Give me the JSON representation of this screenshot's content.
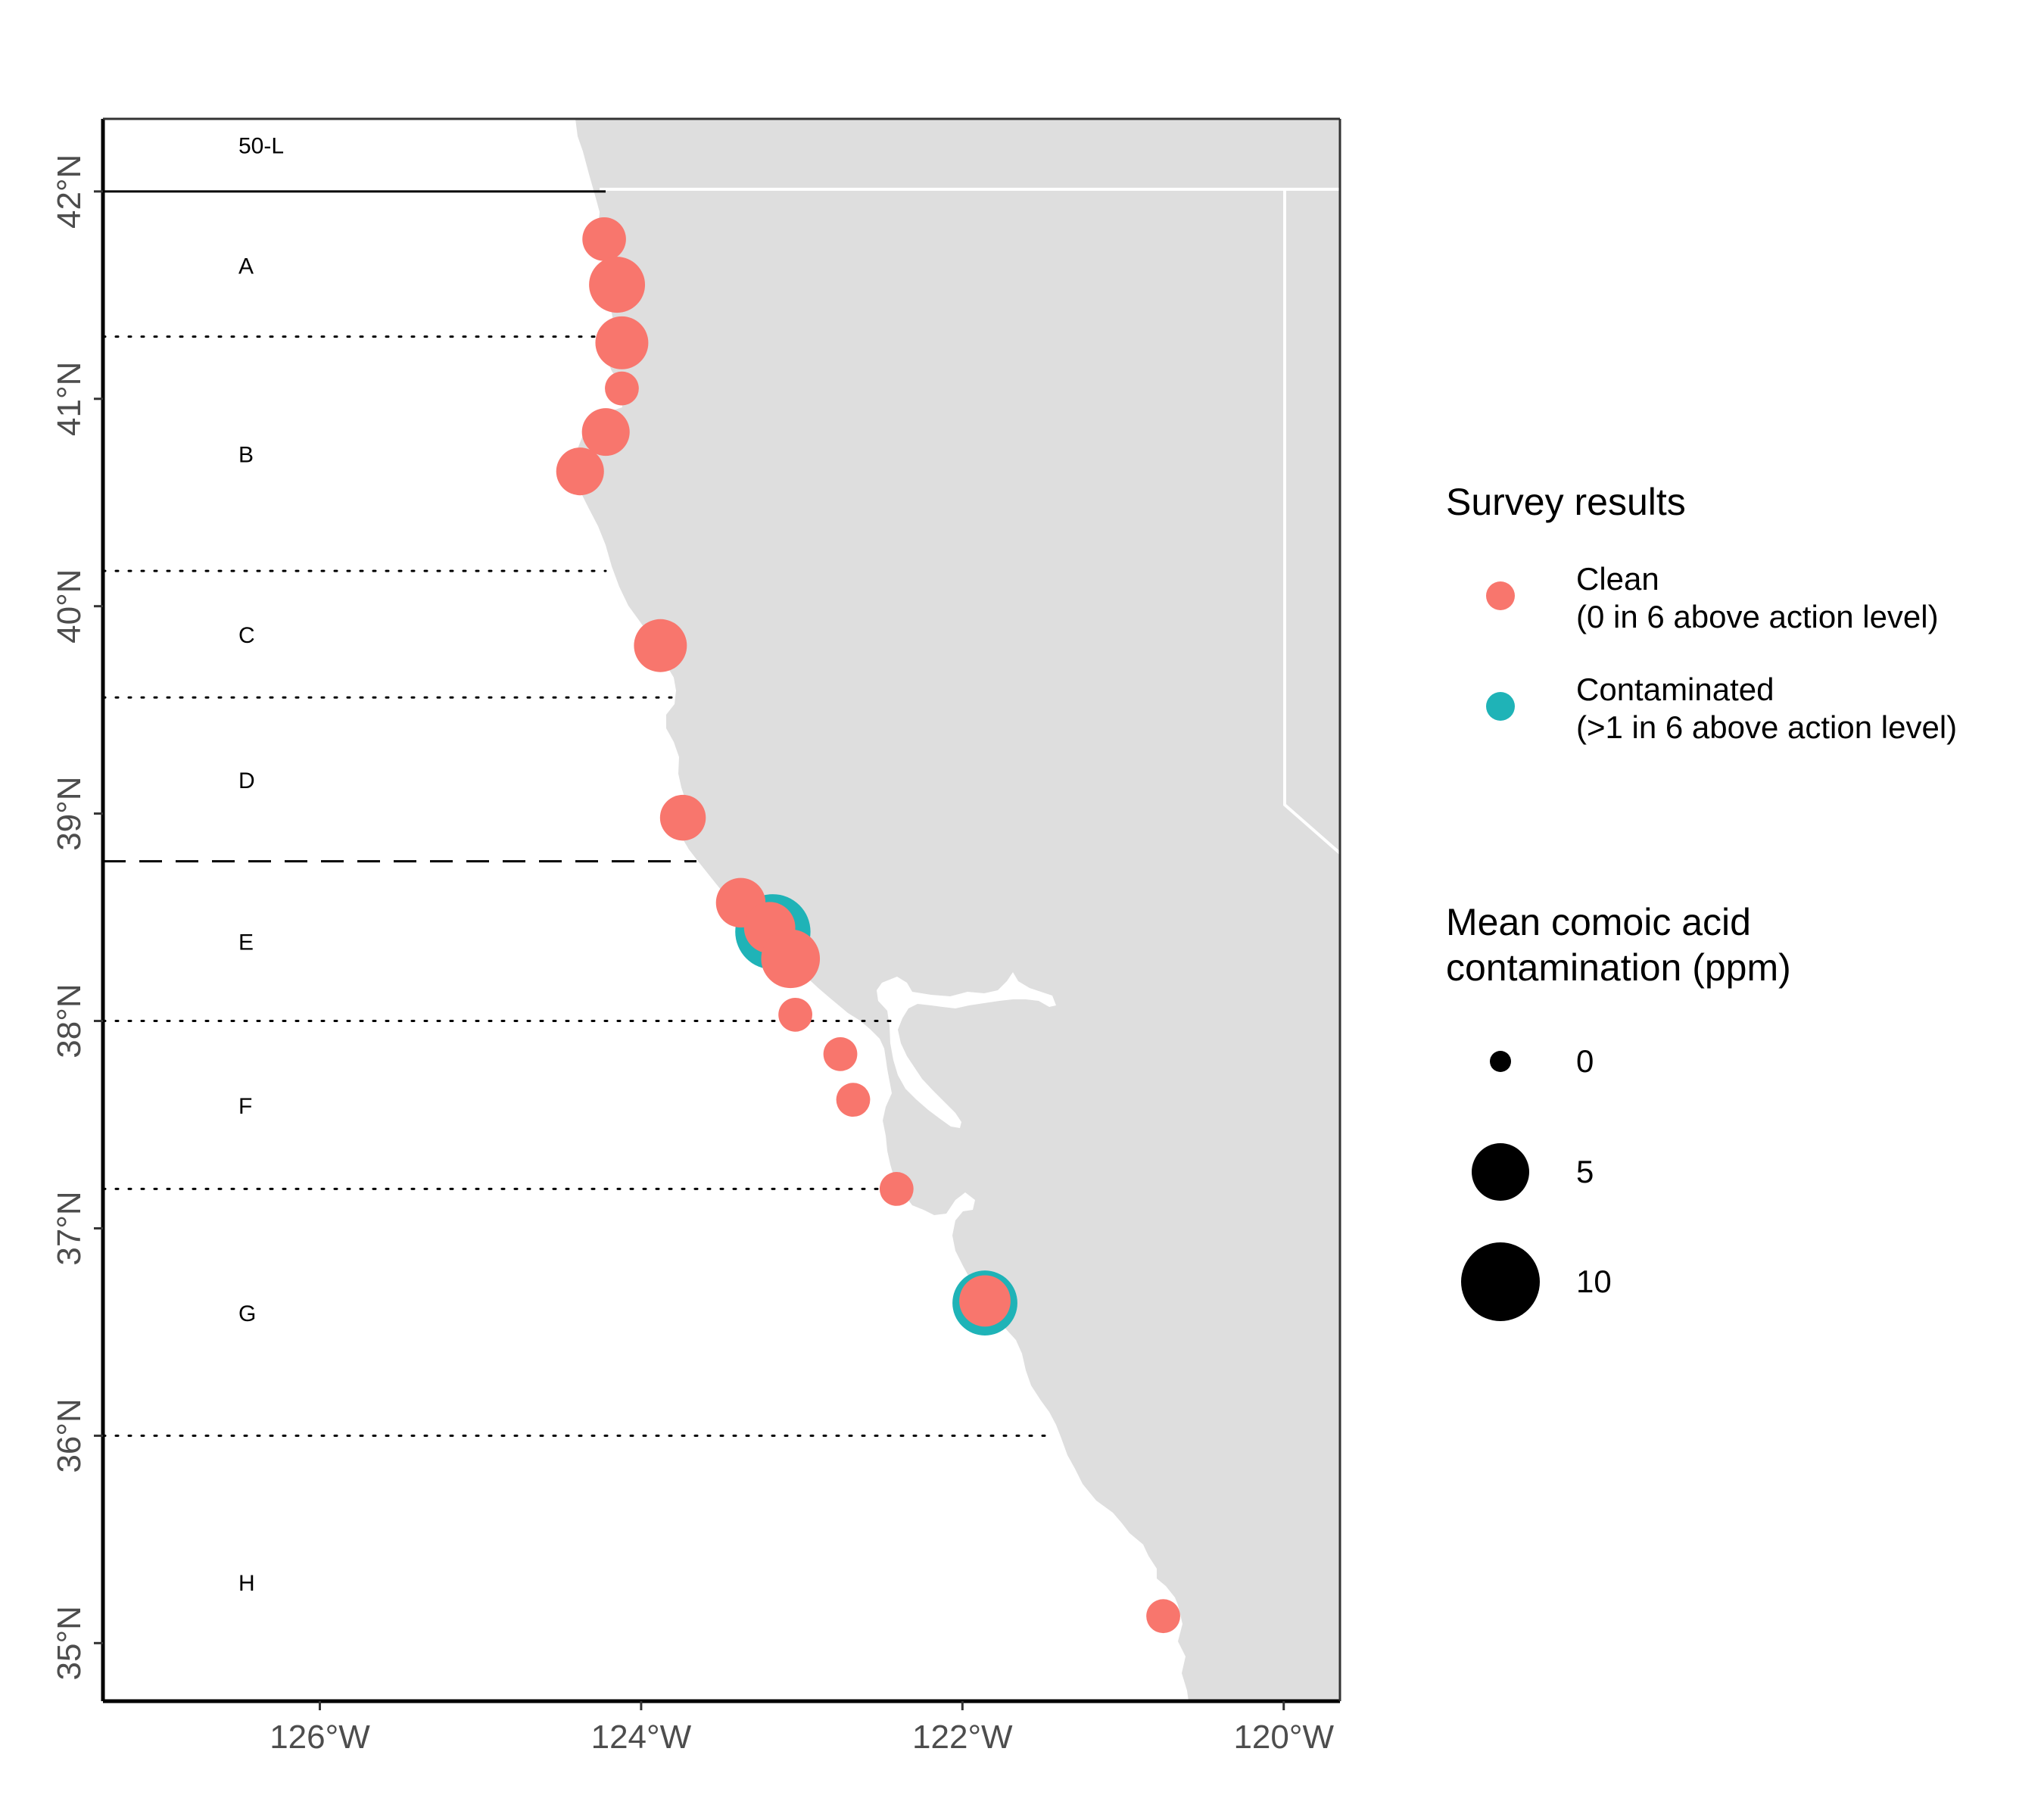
{
  "map": {
    "lon_range": [
      -127.35,
      -119.65
    ],
    "lat_range": [
      34.72,
      42.35
    ],
    "x_ticks": [
      {
        "value": -126,
        "label": "126°W"
      },
      {
        "value": -124,
        "label": "124°W"
      },
      {
        "value": -122,
        "label": "122°W"
      },
      {
        "value": -120,
        "label": "120°W"
      }
    ],
    "y_ticks": [
      {
        "value": 35,
        "label": "35°N"
      },
      {
        "value": 36,
        "label": "36°N"
      },
      {
        "value": 37,
        "label": "37°N"
      },
      {
        "value": 38,
        "label": "38°N"
      },
      {
        "value": 39,
        "label": "39°N"
      },
      {
        "value": 40,
        "label": "40°N"
      },
      {
        "value": 41,
        "label": "41°N"
      },
      {
        "value": 42,
        "label": "42°N"
      }
    ],
    "land_color": "#dedede",
    "zone_boundaries": [
      {
        "lat": 42.0,
        "style": "solid"
      },
      {
        "lat": 41.3,
        "style": "dotted"
      },
      {
        "lat": 40.17,
        "style": "dotted"
      },
      {
        "lat": 39.56,
        "style": "dotted"
      },
      {
        "lat": 38.77,
        "style": "dashed"
      },
      {
        "lat": 38.0,
        "style": "dotted"
      },
      {
        "lat": 37.19,
        "style": "dotted"
      },
      {
        "lat": 36.0,
        "style": "dotted"
      }
    ],
    "zones": [
      {
        "label": "50-L",
        "lat": 42.22
      },
      {
        "label": "A",
        "lat": 41.64
      },
      {
        "label": "B",
        "lat": 40.73
      },
      {
        "label": "C",
        "lat": 39.86
      },
      {
        "label": "D",
        "lat": 39.16
      },
      {
        "label": "E",
        "lat": 38.38
      },
      {
        "label": "F",
        "lat": 37.59
      },
      {
        "label": "G",
        "lat": 36.59
      },
      {
        "label": "H",
        "lat": 35.29
      }
    ]
  },
  "colors": {
    "clean": "#f8766d",
    "contaminated": "#1fb3b7"
  },
  "chart_data": {
    "type": "scatter",
    "x_axis": "longitude",
    "y_axis": "latitude",
    "size_variable": "Mean comoic acid contamination (ppm)",
    "points": [
      {
        "lon": -124.23,
        "lat": 41.77,
        "ppm": 2.5,
        "result": "clean"
      },
      {
        "lon": -124.15,
        "lat": 41.55,
        "ppm": 6.0,
        "result": "clean"
      },
      {
        "lon": -124.12,
        "lat": 41.27,
        "ppm": 5.0,
        "result": "clean"
      },
      {
        "lon": -124.12,
        "lat": 41.05,
        "ppm": 0.8,
        "result": "clean"
      },
      {
        "lon": -124.22,
        "lat": 40.84,
        "ppm": 3.5,
        "result": "clean"
      },
      {
        "lon": -124.38,
        "lat": 40.65,
        "ppm": 3.5,
        "result": "clean"
      },
      {
        "lon": -123.88,
        "lat": 39.81,
        "ppm": 5.0,
        "result": "clean"
      },
      {
        "lon": -123.74,
        "lat": 38.98,
        "ppm": 3.0,
        "result": "clean"
      },
      {
        "lon": -123.38,
        "lat": 38.57,
        "ppm": 4.0,
        "result": "clean"
      },
      {
        "lon": -123.18,
        "lat": 38.43,
        "ppm": 14.5,
        "result": "contaminated"
      },
      {
        "lon": -123.2,
        "lat": 38.45,
        "ppm": 4.5,
        "result": "clean"
      },
      {
        "lon": -123.07,
        "lat": 38.3,
        "ppm": 7.0,
        "result": "clean"
      },
      {
        "lon": -123.04,
        "lat": 38.03,
        "ppm": 0.8,
        "result": "clean"
      },
      {
        "lon": -122.76,
        "lat": 37.84,
        "ppm": 0.8,
        "result": "clean"
      },
      {
        "lon": -122.68,
        "lat": 37.62,
        "ppm": 0.8,
        "result": "clean"
      },
      {
        "lon": -122.41,
        "lat": 37.19,
        "ppm": 0.8,
        "result": "clean"
      },
      {
        "lon": -121.86,
        "lat": 36.64,
        "ppm": 9.5,
        "result": "contaminated"
      },
      {
        "lon": -121.86,
        "lat": 36.65,
        "ppm": 4.5,
        "result": "clean"
      },
      {
        "lon": -120.75,
        "lat": 35.13,
        "ppm": 0.8,
        "result": "clean"
      }
    ]
  },
  "legend": {
    "color_title": "Survey results",
    "items": [
      {
        "key": "clean",
        "line1": "Clean",
        "line2": "(0 in 6 above action level)"
      },
      {
        "key": "contaminated",
        "line1": "Contaminated",
        "line2": "(>1 in 6 above action level)"
      }
    ],
    "size_title_line1": "Mean comoic acid",
    "size_title_line2": "contamination (ppm)",
    "size_items": [
      {
        "value": 0,
        "label": "0"
      },
      {
        "value": 5,
        "label": "5"
      },
      {
        "value": 10,
        "label": "10"
      }
    ]
  }
}
